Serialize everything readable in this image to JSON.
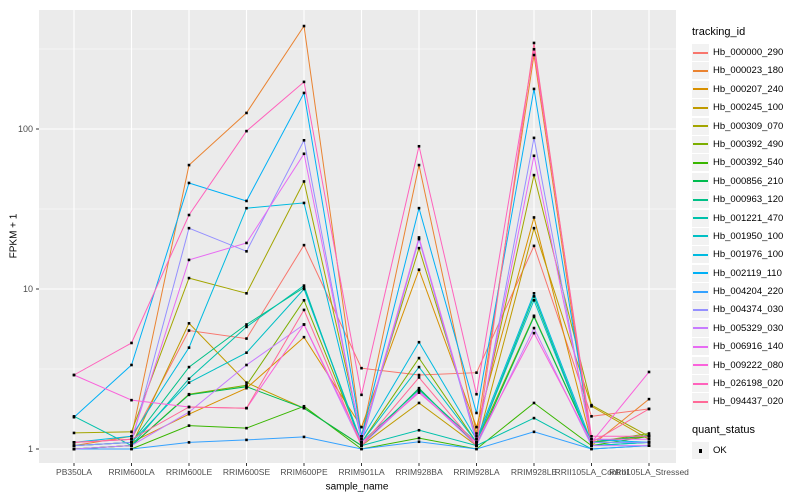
{
  "colors": {
    "panel_bg": "#EBEBEB",
    "grid": "#FFFFFF",
    "tick_mark": "#333333",
    "tick_label": "#4D4D4D",
    "point": "#000000",
    "legend_key_bg": "#F2F2F2"
  },
  "chart_data": {
    "type": "line",
    "title": "",
    "xlabel": "sample_name",
    "ylabel": "FPKM + 1",
    "y_scale": "log10",
    "y_ticks": [
      1,
      10,
      100
    ],
    "y_minor_ticks": [
      3.162,
      31.62,
      316.2
    ],
    "ylim": [
      0.83,
      560
    ],
    "grid": true,
    "legend_position": "right",
    "point_shape": "filled-black-square",
    "categories": [
      "PB350LA",
      "RRIM600LA",
      "RRIM600LE",
      "RRIM600SE",
      "RRIM600PE",
      "RRIM901LA",
      "RRIM928BA",
      "RRIM928LA",
      "RRIM928LE",
      "RRII105LA_Control",
      "RRII105LA_Stressed"
    ],
    "series": [
      {
        "name": "Hb_000000_290",
        "color": "#F8766D",
        "values": [
          1.1,
          1.15,
          5.5,
          4.9,
          18.8,
          3.2,
          2.9,
          3.0,
          18.6,
          1.6,
          1.78
        ]
      },
      {
        "name": "Hb_000023_180",
        "color": "#EA8331",
        "values": [
          1.05,
          1.2,
          59.5,
          126,
          440,
          1.2,
          59.5,
          1.25,
          290,
          1.05,
          2.05
        ]
      },
      {
        "name": "Hb_000207_240",
        "color": "#D89000",
        "values": [
          1.05,
          1.1,
          1.65,
          2.4,
          5.0,
          1.37,
          13.2,
          1.37,
          28,
          1.1,
          1.2
        ]
      },
      {
        "name": "Hb_000245_100",
        "color": "#C09B00",
        "values": [
          1.0,
          1.05,
          6.1,
          2.6,
          1.8,
          1.05,
          1.94,
          1.05,
          24,
          1.85,
          1.15
        ]
      },
      {
        "name": "Hb_000309_070",
        "color": "#A3A500",
        "values": [
          1.26,
          1.28,
          11.7,
          9.4,
          47,
          1.2,
          18,
          1.2,
          51.5,
          1.88,
          1.2
        ]
      },
      {
        "name": "Hb_000392_490",
        "color": "#7CAE00",
        "values": [
          1.0,
          1.05,
          2.2,
          2.5,
          8.5,
          1.1,
          3.7,
          1.1,
          6.8,
          1.1,
          1.25
        ]
      },
      {
        "name": "Hb_000392_540",
        "color": "#39B600",
        "values": [
          1.0,
          1.0,
          1.4,
          1.35,
          1.85,
          1.0,
          1.17,
          1.0,
          1.94,
          1.05,
          1.2
        ]
      },
      {
        "name": "Hb_000856_210",
        "color": "#00BB4E",
        "values": [
          1.0,
          1.05,
          2.18,
          2.45,
          1.8,
          1.05,
          2.4,
          1.05,
          6.7,
          1.1,
          1.22
        ]
      },
      {
        "name": "Hb_000963_120",
        "color": "#00C087",
        "values": [
          1.05,
          1.1,
          3.25,
          6.0,
          10.2,
          1.1,
          2.35,
          1.1,
          9.0,
          1.05,
          1.1
        ]
      },
      {
        "name": "Hb_001221_470",
        "color": "#00C1AB",
        "values": [
          1.6,
          1.05,
          2.75,
          5.8,
          10.5,
          1.05,
          1.31,
          1.05,
          1.56,
          1.0,
          1.05
        ]
      },
      {
        "name": "Hb_001950_100",
        "color": "#00BFC4",
        "values": [
          1.05,
          1.1,
          2.6,
          4.0,
          10.0,
          1.1,
          3.25,
          1.1,
          8.5,
          1.05,
          1.1
        ]
      },
      {
        "name": "Hb_001976_100",
        "color": "#00BAE0",
        "values": [
          1.1,
          1.2,
          4.3,
          32,
          34.5,
          1.15,
          4.65,
          1.15,
          9.4,
          1.1,
          1.1
        ]
      },
      {
        "name": "Hb_002119_110",
        "color": "#00B0F6",
        "values": [
          1.58,
          3.35,
          46,
          35.5,
          168,
          1.2,
          32,
          1.68,
          178,
          1.15,
          1.1
        ]
      },
      {
        "name": "Hb_004204_220",
        "color": "#35A2FF",
        "values": [
          1.0,
          1.0,
          1.1,
          1.14,
          1.19,
          1.0,
          1.11,
          1.0,
          1.28,
          1.0,
          1.05
        ]
      },
      {
        "name": "Hb_004374_030",
        "color": "#9590FF",
        "values": [
          1.05,
          1.1,
          24,
          17.2,
          85,
          1.1,
          20.5,
          1.1,
          88,
          1.1,
          1.1
        ]
      },
      {
        "name": "Hb_005329_030",
        "color": "#C77CFF",
        "values": [
          1.0,
          1.05,
          1.7,
          3.35,
          6.0,
          1.05,
          2.3,
          1.05,
          5.7,
          1.05,
          1.05
        ]
      },
      {
        "name": "Hb_006916_140",
        "color": "#E76BF3",
        "values": [
          1.1,
          1.15,
          15.2,
          19.4,
          70,
          1.15,
          21,
          1.15,
          68,
          1.15,
          1.15
        ]
      },
      {
        "name": "Hb_009222_080",
        "color": "#FA62DB",
        "values": [
          2.9,
          2.02,
          1.83,
          1.8,
          6.0,
          1.1,
          2.25,
          1.1,
          5.3,
          1.1,
          3.03
        ]
      },
      {
        "name": "Hb_026198_020",
        "color": "#FF62BC",
        "values": [
          2.9,
          4.6,
          29,
          97,
          197,
          2.18,
          78,
          2.2,
          315,
          1.2,
          1.2
        ]
      },
      {
        "name": "Hb_094437_020",
        "color": "#FF6A98",
        "values": [
          1.1,
          1.15,
          1.83,
          1.8,
          7.4,
          1.05,
          2.8,
          1.05,
          345,
          1.1,
          1.78
        ]
      }
    ],
    "legend": {
      "color_title": "tracking_id",
      "shape_title": "quant_status",
      "shape_entries": [
        "OK"
      ]
    }
  }
}
